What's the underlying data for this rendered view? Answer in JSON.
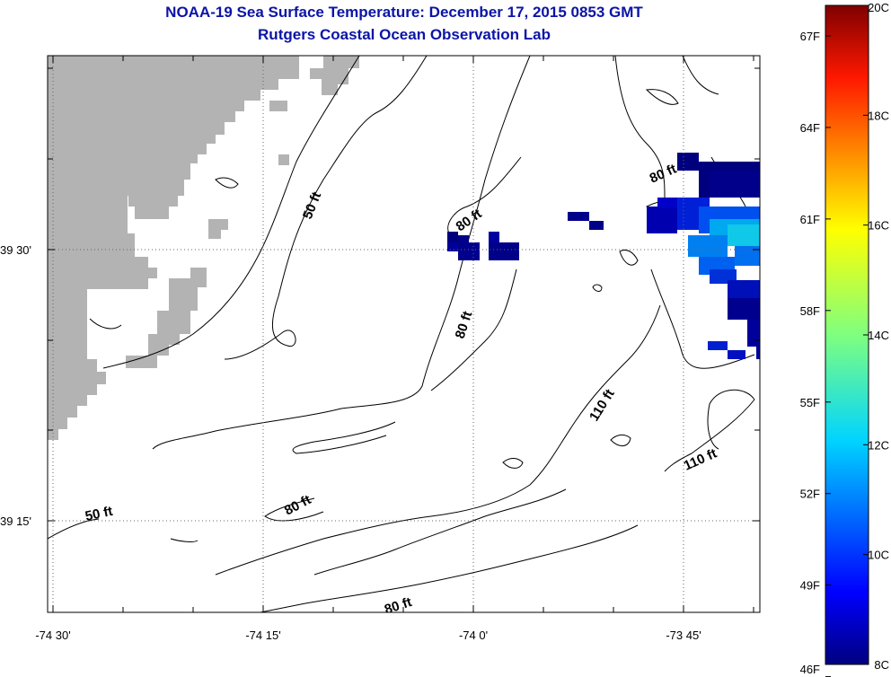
{
  "header": {
    "title": "NOAA-19 Sea Surface Temperature:  December 17, 2015 0853 GMT",
    "subtitle": "Rutgers Coastal Ocean Observation Lab"
  },
  "map": {
    "x_ticks": [
      "-74 30'",
      "-74 15'",
      "-74 0'",
      "-73 45'"
    ],
    "y_ticks": [
      "39 30'",
      "39 15'"
    ],
    "land_color": "#b3b3b3",
    "contour_labels": [
      "50 ft",
      "80 ft",
      "80 ft",
      "80 ft",
      "110 ft",
      "110 ft",
      "80 ft",
      "50 ft",
      "80 ft"
    ]
  },
  "colorbar": {
    "min_c": 8,
    "max_c": 20,
    "celsius_labels": [
      "20C",
      "18C",
      "16C",
      "14C",
      "12C",
      "10C",
      "8C"
    ],
    "fahrenheit_labels": [
      "67F",
      "64F",
      "61F",
      "58F",
      "55F",
      "52F",
      "49F",
      "46F"
    ]
  }
}
